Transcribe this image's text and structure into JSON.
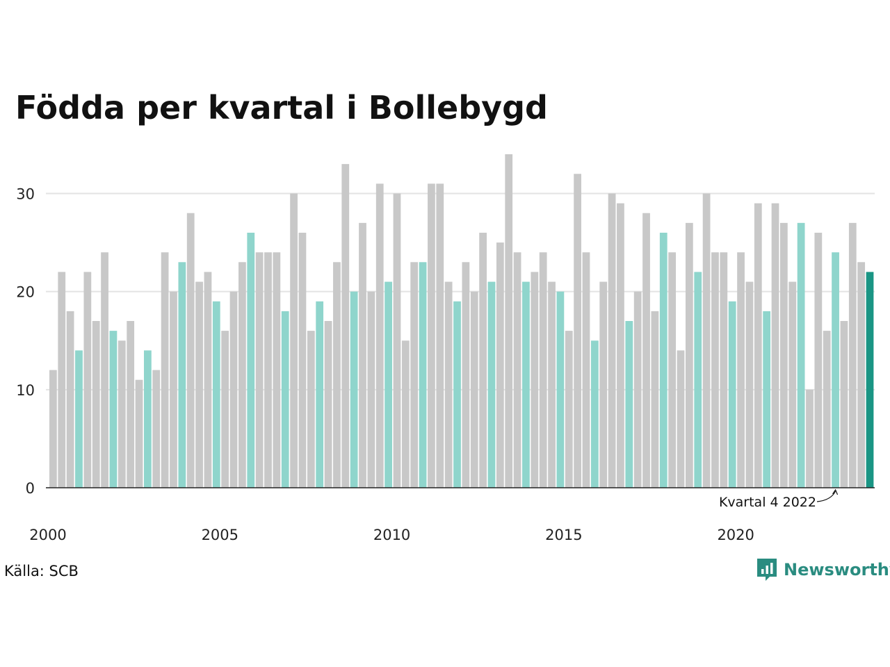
{
  "chart_data": {
    "type": "bar",
    "title": "Födda per kvartal i Bollebygd",
    "xlabel": "",
    "ylabel": "",
    "ylim": [
      0,
      34
    ],
    "yticks": [
      0,
      10,
      20,
      30
    ],
    "xticks": [
      "2000",
      "2005",
      "2010",
      "2015",
      "2020"
    ],
    "grid": true,
    "start_year": 2000,
    "quarters_per_year": 4,
    "values": [
      12,
      22,
      18,
      14,
      22,
      17,
      24,
      16,
      15,
      17,
      11,
      14,
      12,
      24,
      20,
      23,
      28,
      21,
      22,
      19,
      16,
      20,
      23,
      26,
      24,
      24,
      24,
      18,
      30,
      26,
      16,
      19,
      17,
      23,
      33,
      20,
      27,
      20,
      31,
      21,
      30,
      15,
      23,
      23,
      31,
      31,
      21,
      19,
      23,
      20,
      26,
      21,
      25,
      34,
      24,
      21,
      22,
      24,
      21,
      20,
      16,
      32,
      24,
      15,
      21,
      30,
      29,
      17,
      20,
      28,
      18,
      26,
      24,
      14,
      27,
      22,
      30,
      24,
      24,
      19,
      24,
      21,
      29,
      18,
      29,
      27,
      21,
      27,
      10,
      26,
      16,
      24,
      17,
      27,
      23,
      22
    ],
    "colors": {
      "default": "#c8c8c8",
      "highlight_quarter": "#8fd5cc",
      "latest": "#1a9584",
      "grid": "#e3e3e3",
      "axis": "#222222"
    },
    "annotation": {
      "label": "Kvartal 4 2022",
      "target_index": 91
    }
  },
  "source": "Källa: SCB",
  "brand": {
    "name": "Newsworthy",
    "icon": "newsworthy-logo-icon",
    "color": "#2a8c80"
  }
}
